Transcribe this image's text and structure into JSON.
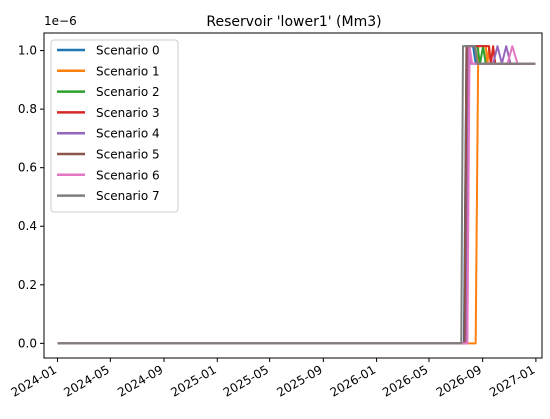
{
  "chart_data": {
    "type": "line",
    "title": "Reservoir 'lower1' (Mm3)",
    "xlabel": "",
    "ylabel": "",
    "y_multiplier_label": "1e−6",
    "xlim": [
      "2023-12-01",
      "2027-01-15"
    ],
    "ylim": [
      -0.05,
      1.06
    ],
    "x_ticks": [
      "2024-01",
      "2024-05",
      "2024-09",
      "2025-01",
      "2025-05",
      "2025-09",
      "2026-01",
      "2026-05",
      "2026-09",
      "2027-01"
    ],
    "y_ticks": [
      0.0,
      0.2,
      0.4,
      0.6,
      0.8,
      1.0
    ],
    "y_tick_labels": [
      "0.0",
      "0.2",
      "0.4",
      "0.6",
      "0.8",
      "1.0"
    ],
    "grid": false,
    "legend_position": "upper-left",
    "series": [
      {
        "name": "Scenario 0",
        "color": "#1f77b4",
        "points": [
          [
            "2024-01-01",
            0
          ],
          [
            "2026-07-20",
            0
          ],
          [
            "2026-07-26",
            1.015
          ],
          [
            "2026-08-10",
            1.015
          ],
          [
            "2026-08-16",
            0.955
          ],
          [
            "2026-12-31",
            0.955
          ]
        ]
      },
      {
        "name": "Scenario 1",
        "color": "#ff7f0e",
        "points": [
          [
            "2024-01-01",
            0
          ],
          [
            "2026-08-16",
            0
          ],
          [
            "2026-08-22",
            1.015
          ],
          [
            "2026-09-08",
            1.015
          ],
          [
            "2026-09-12",
            0.955
          ],
          [
            "2026-09-16",
            1.015
          ],
          [
            "2026-09-20",
            0.955
          ],
          [
            "2026-12-31",
            0.955
          ]
        ]
      },
      {
        "name": "Scenario 2",
        "color": "#2ca02c",
        "points": [
          [
            "2024-01-01",
            0
          ],
          [
            "2026-07-22",
            0
          ],
          [
            "2026-07-27",
            1.015
          ],
          [
            "2026-08-20",
            1.015
          ],
          [
            "2026-08-26",
            0.955
          ],
          [
            "2026-09-02",
            1.015
          ],
          [
            "2026-09-08",
            0.955
          ],
          [
            "2026-12-31",
            0.955
          ]
        ]
      },
      {
        "name": "Scenario 3",
        "color": "#d62728",
        "points": [
          [
            "2024-01-01",
            0
          ],
          [
            "2026-07-24",
            0
          ],
          [
            "2026-07-29",
            1.015
          ],
          [
            "2026-09-15",
            1.015
          ],
          [
            "2026-09-20",
            0.955
          ],
          [
            "2026-09-25",
            1.015
          ],
          [
            "2026-09-30",
            0.955
          ],
          [
            "2026-12-31",
            0.955
          ]
        ]
      },
      {
        "name": "Scenario 4",
        "color": "#9467bd",
        "points": [
          [
            "2024-01-01",
            0
          ],
          [
            "2026-07-26",
            0
          ],
          [
            "2026-07-31",
            1.015
          ],
          [
            "2026-08-05",
            0.955
          ],
          [
            "2026-09-25",
            0.955
          ],
          [
            "2026-10-05",
            1.015
          ],
          [
            "2026-10-15",
            0.955
          ],
          [
            "2026-10-25",
            1.015
          ],
          [
            "2026-11-04",
            0.955
          ],
          [
            "2026-12-31",
            0.955
          ]
        ]
      },
      {
        "name": "Scenario 5",
        "color": "#8c564b",
        "points": [
          [
            "2024-01-01",
            0
          ],
          [
            "2026-07-21",
            0
          ],
          [
            "2026-07-26",
            1.015
          ],
          [
            "2026-08-14",
            1.015
          ],
          [
            "2026-08-20",
            0.955
          ],
          [
            "2026-12-31",
            0.955
          ]
        ]
      },
      {
        "name": "Scenario 6",
        "color": "#e377c2",
        "points": [
          [
            "2024-01-01",
            0
          ],
          [
            "2026-07-28",
            0
          ],
          [
            "2026-08-02",
            1.015
          ],
          [
            "2026-08-08",
            0.955
          ],
          [
            "2026-10-28",
            0.955
          ],
          [
            "2026-11-08",
            1.015
          ],
          [
            "2026-11-20",
            0.955
          ],
          [
            "2026-12-31",
            0.955
          ]
        ]
      },
      {
        "name": "Scenario 7",
        "color": "#7f7f7f",
        "points": [
          [
            "2024-01-01",
            0
          ],
          [
            "2026-07-14",
            0
          ],
          [
            "2026-07-18",
            1.015
          ],
          [
            "2026-08-15",
            1.015
          ],
          [
            "2026-08-20",
            0.955
          ],
          [
            "2026-12-31",
            0.955
          ]
        ]
      }
    ]
  }
}
